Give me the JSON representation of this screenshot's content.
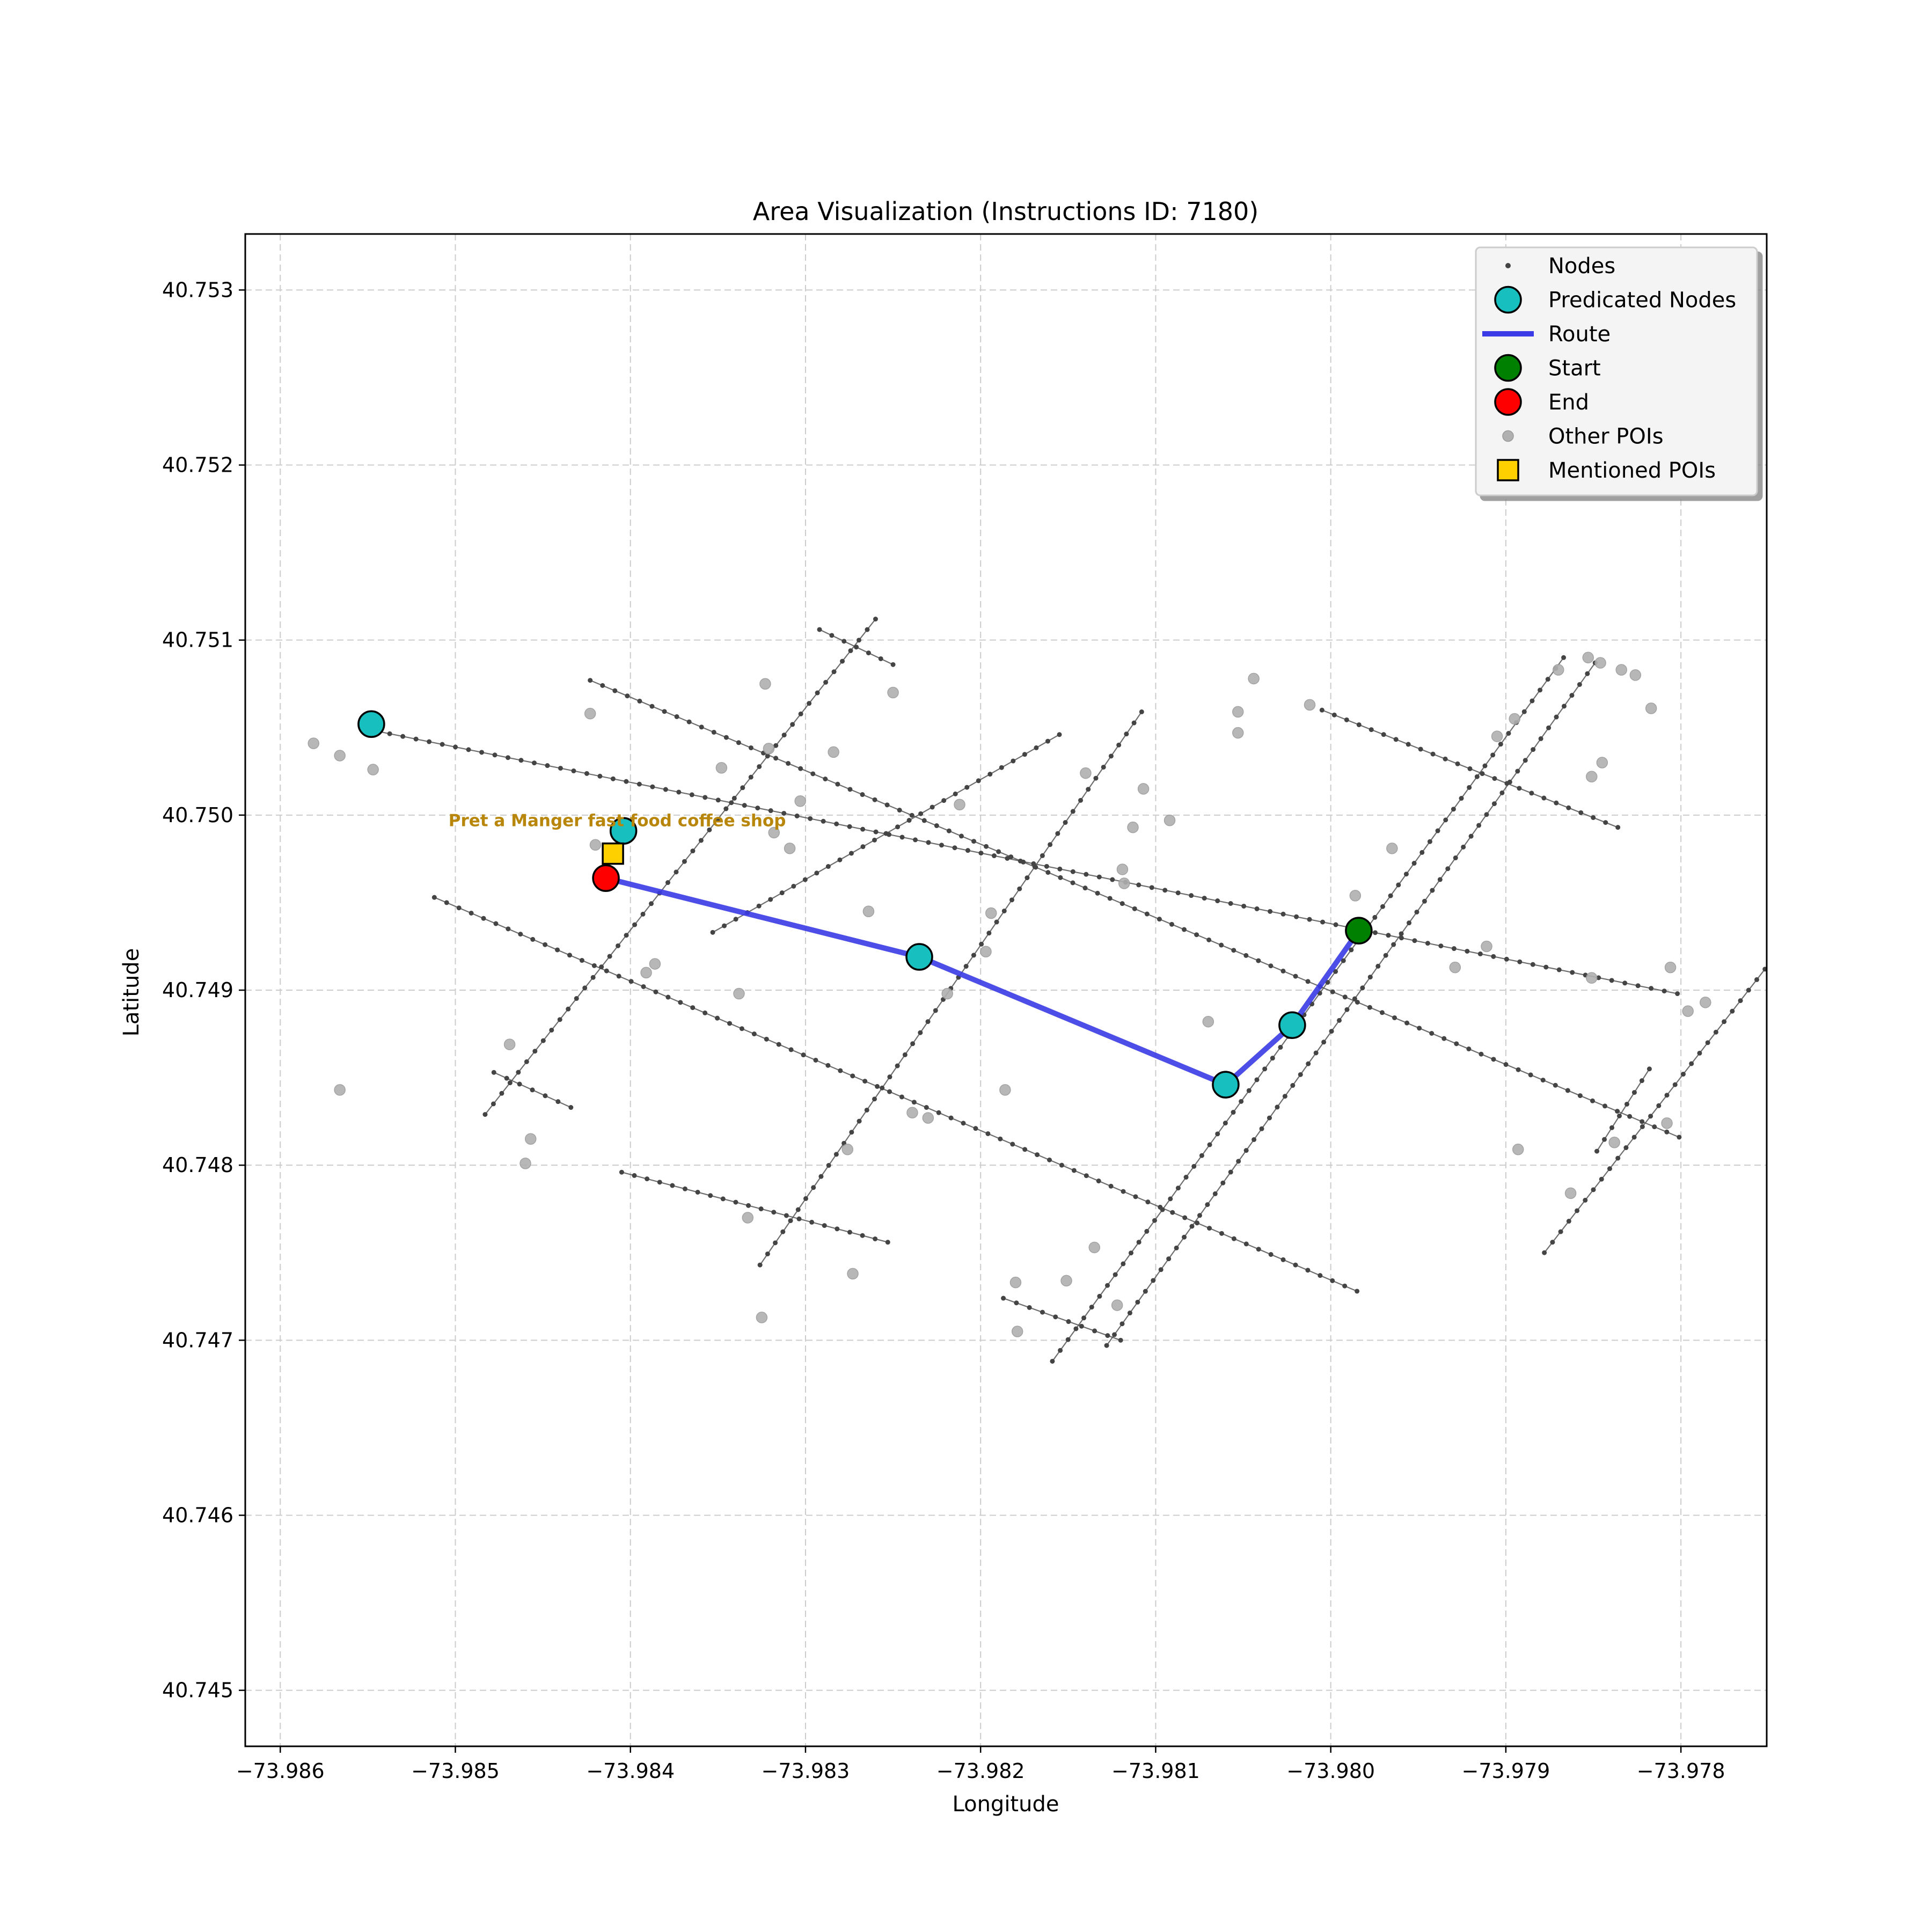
{
  "chart_data": {
    "type": "scatter",
    "title": "Area Visualization (Instructions ID: 7180)",
    "xlabel": "Longitude",
    "ylabel": "Latitude",
    "xlim": [
      -73.9862,
      -73.97751
    ],
    "ylim": [
      40.74468,
      40.75332
    ],
    "x_ticks": [
      -73.986,
      -73.985,
      -73.984,
      -73.983,
      -73.982,
      -73.981,
      -73.98,
      -73.979,
      -73.978
    ],
    "x_tick_labels": [
      "−73.986",
      "−73.985",
      "−73.984",
      "−73.983",
      "−73.982",
      "−73.981",
      "−73.980",
      "−73.979",
      "−73.978"
    ],
    "y_ticks": [
      40.745,
      40.746,
      40.747,
      40.748,
      40.749,
      40.75,
      40.751,
      40.752,
      40.753
    ],
    "y_tick_labels": [
      "40.745",
      "40.746",
      "40.747",
      "40.748",
      "40.749",
      "40.750",
      "40.751",
      "40.752",
      "40.753"
    ],
    "grid": true,
    "legend_position": "top-right",
    "legend": [
      {
        "key": "nodes",
        "label": "Nodes"
      },
      {
        "key": "predicated",
        "label": "Predicated Nodes"
      },
      {
        "key": "route",
        "label": "Route"
      },
      {
        "key": "start",
        "label": "Start"
      },
      {
        "key": "end",
        "label": "End"
      },
      {
        "key": "other_pois",
        "label": "Other POIs"
      },
      {
        "key": "mentioned_pois",
        "label": "Mentioned POIs"
      }
    ],
    "colors": {
      "node": "#444444",
      "edge": "#555555",
      "predicated": "#17bfbf",
      "route": "#3a3ae6",
      "start": "#008000",
      "end": "#ff0000",
      "other_poi": "#b0b0b0",
      "mentioned_poi": "#ffd000",
      "annotation": "#b8860b",
      "grid": "#cccccc"
    },
    "streets": [
      [
        [
          -73.98545,
          40.75048
        ],
        [
          -73.97802,
          40.74898
        ]
      ],
      [
        [
          -73.98423,
          40.75077
        ],
        [
          -73.97801,
          40.74816
        ]
      ],
      [
        [
          -73.98512,
          40.74953
        ],
        [
          -73.97985,
          40.74728
        ]
      ],
      [
        [
          -73.98155,
          40.75046
        ],
        [
          -73.98353,
          40.74933
        ]
      ],
      [
        [
          -73.98005,
          40.7506
        ],
        [
          -73.97836,
          40.74993
        ]
      ],
      [
        [
          -73.98292,
          40.75106
        ],
        [
          -73.9825,
          40.75086
        ]
      ],
      [
        [
          -73.98478,
          40.74853
        ],
        [
          -73.98434,
          40.74833
        ]
      ],
      [
        [
          -73.98405,
          40.74796
        ],
        [
          -73.98253,
          40.74756
        ]
      ],
      [
        [
          -73.98187,
          40.74724
        ],
        [
          -73.9812,
          40.747
        ]
      ],
      [
        [
          -73.98483,
          40.74829
        ],
        [
          -73.9826,
          40.75112
        ]
      ],
      [
        [
          -73.98326,
          40.74743
        ],
        [
          -73.98108,
          40.75059
        ]
      ],
      [
        [
          -73.98159,
          40.74688
        ],
        [
          -73.97867,
          40.7509
        ]
      ],
      [
        [
          -73.98128,
          40.74697
        ],
        [
          -73.97849,
          40.75087
        ]
      ],
      [
        [
          -73.97878,
          40.7475
        ],
        [
          -73.97752,
          40.74912
        ]
      ],
      [
        [
          -73.97848,
          40.74808
        ],
        [
          -73.97818,
          40.74855
        ]
      ]
    ],
    "other_pois": [
      [
        -73.98581,
        40.75041
      ],
      [
        -73.98566,
        40.75034
      ],
      [
        -73.98547,
        40.75026
      ],
      [
        -73.98566,
        40.74843
      ],
      [
        -73.98469,
        40.74869
      ],
      [
        -73.98457,
        40.74815
      ],
      [
        -73.9846,
        40.74801
      ],
      [
        -73.98423,
        40.75058
      ],
      [
        -73.9842,
        40.74983
      ],
      [
        -73.98391,
        40.7491
      ],
      [
        -73.98386,
        40.74915
      ],
      [
        -73.98348,
        40.75027
      ],
      [
        -73.98338,
        40.74898
      ],
      [
        -73.98333,
        40.7477
      ],
      [
        -73.98325,
        40.74713
      ],
      [
        -73.98323,
        40.75075
      ],
      [
        -73.98321,
        40.75038
      ],
      [
        -73.98318,
        40.7499
      ],
      [
        -73.98309,
        40.74981
      ],
      [
        -73.98303,
        40.75008
      ],
      [
        -73.98284,
        40.75036
      ],
      [
        -73.98276,
        40.74809
      ],
      [
        -73.98273,
        40.74738
      ],
      [
        -73.98264,
        40.74945
      ],
      [
        -73.9825,
        40.7507
      ],
      [
        -73.98239,
        40.7483
      ],
      [
        -73.9823,
        40.74827
      ],
      [
        -73.98219,
        40.74898
      ],
      [
        -73.98212,
        40.75006
      ],
      [
        -73.98197,
        40.74922
      ],
      [
        -73.98194,
        40.74944
      ],
      [
        -73.98186,
        40.74843
      ],
      [
        -73.9818,
        40.74733
      ],
      [
        -73.98179,
        40.74705
      ],
      [
        -73.98151,
        40.74734
      ],
      [
        -73.9814,
        40.75024
      ],
      [
        -73.98135,
        40.74753
      ],
      [
        -73.98122,
        40.7472
      ],
      [
        -73.98119,
        40.74969
      ],
      [
        -73.98118,
        40.74961
      ],
      [
        -73.98113,
        40.74993
      ],
      [
        -73.98107,
        40.75015
      ],
      [
        -73.98092,
        40.74997
      ],
      [
        -73.9807,
        40.74882
      ],
      [
        -73.98053,
        40.75059
      ],
      [
        -73.98053,
        40.75047
      ],
      [
        -73.98044,
        40.75078
      ],
      [
        -73.98012,
        40.75063
      ],
      [
        -73.97986,
        40.74954
      ],
      [
        -73.97965,
        40.74981
      ],
      [
        -73.97929,
        40.74913
      ],
      [
        -73.97911,
        40.74925
      ],
      [
        -73.97905,
        40.75045
      ],
      [
        -73.97895,
        40.75055
      ],
      [
        -73.97893,
        40.74809
      ],
      [
        -73.9787,
        40.75083
      ],
      [
        -73.97863,
        40.74784
      ],
      [
        -73.97853,
        40.7509
      ],
      [
        -73.97851,
        40.74907
      ],
      [
        -73.97851,
        40.75022
      ],
      [
        -73.97845,
        40.7503
      ],
      [
        -73.97846,
        40.75087
      ],
      [
        -73.97838,
        40.74813
      ],
      [
        -73.97834,
        40.75083
      ],
      [
        -73.97826,
        40.7508
      ],
      [
        -73.97817,
        40.75061
      ],
      [
        -73.97808,
        40.74824
      ],
      [
        -73.97806,
        40.74913
      ],
      [
        -73.97796,
        40.74888
      ],
      [
        -73.97786,
        40.74893
      ]
    ],
    "predicated_nodes": [
      [
        -73.98548,
        40.75052
      ],
      [
        -73.98404,
        40.74991
      ],
      [
        -73.98235,
        40.74919
      ],
      [
        -73.9806,
        40.74846
      ],
      [
        -73.98022,
        40.7488
      ]
    ],
    "route": [
      [
        -73.98414,
        40.74964
      ],
      [
        -73.98235,
        40.74919
      ],
      [
        -73.9806,
        40.74846
      ],
      [
        -73.98022,
        40.7488
      ],
      [
        -73.97984,
        40.74934
      ]
    ],
    "start": [
      -73.97984,
      40.74934
    ],
    "end": [
      -73.98414,
      40.74964
    ],
    "mentioned_pois": [
      {
        "name": "Pret a Manger fast food coffee shop",
        "lon": -73.9841,
        "lat": 40.74978
      }
    ]
  }
}
